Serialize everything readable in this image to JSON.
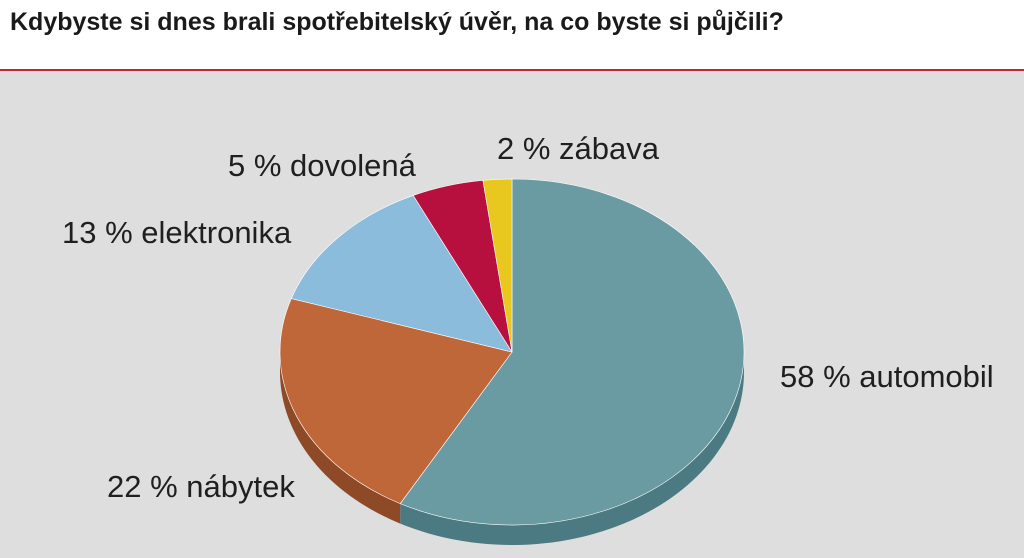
{
  "title": "Kdybyste si dnes brali spotřebitelský úvěr, na co byste si půjčili?",
  "chart_data": {
    "type": "pie",
    "title": "Kdybyste si dnes brali spotřebitelský úvěr, na co byste si půjčili?",
    "slices": [
      {
        "label": "58 % automobil",
        "value": 58,
        "color": "#6a9ba3",
        "side": "#4c7a82"
      },
      {
        "label": "22 % nábytek",
        "value": 22,
        "color": "#c0673a",
        "side": "#8e4a27"
      },
      {
        "label": "13 % elektronika",
        "value": 13,
        "color": "#8bbcdc",
        "side": "#6a97b5"
      },
      {
        "label": "5 % dovolená",
        "value": 5,
        "color": "#b8103e",
        "side": "#860a2c"
      },
      {
        "label": "2 % zábava",
        "value": 2,
        "color": "#e8c81e",
        "side": "#b39a14"
      }
    ]
  }
}
